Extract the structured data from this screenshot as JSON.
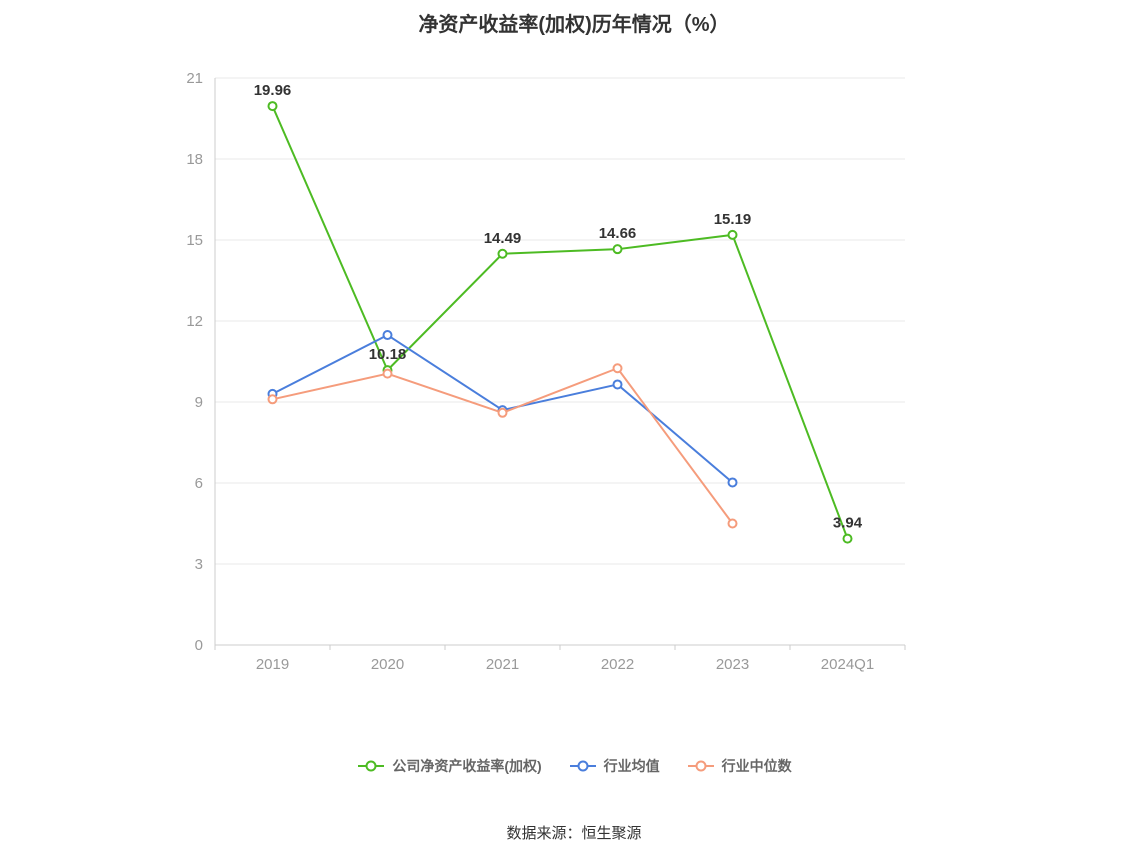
{
  "source_label": "数据来源：恒生聚源",
  "chart_data": {
    "type": "line",
    "title": "净资产收益率(加权)历年情况（%）",
    "categories": [
      "2019",
      "2020",
      "2021",
      "2022",
      "2023",
      "2024Q1"
    ],
    "series": [
      {
        "name": "公司净资产收益率(加权)",
        "color": "#4dbb23",
        "show_labels": true,
        "values": [
          19.96,
          10.18,
          14.49,
          14.66,
          15.19,
          3.94
        ]
      },
      {
        "name": "行业均值",
        "color": "#4a7edc",
        "show_labels": false,
        "values": [
          9.3,
          11.48,
          8.7,
          9.65,
          6.02,
          null
        ]
      },
      {
        "name": "行业中位数",
        "color": "#f59c7c",
        "show_labels": false,
        "values": [
          9.1,
          10.05,
          8.6,
          10.25,
          4.5,
          null
        ]
      }
    ],
    "ylim": [
      0,
      21
    ],
    "yticks": [
      0,
      3,
      6,
      9,
      12,
      15,
      18,
      21
    ],
    "grid": true,
    "legend_position": "bottom",
    "style": {
      "grid_color": "#e8e8e8",
      "axis_color": "#cccccc",
      "tick_label_color": "#999999",
      "data_label_color": "#333333"
    }
  }
}
